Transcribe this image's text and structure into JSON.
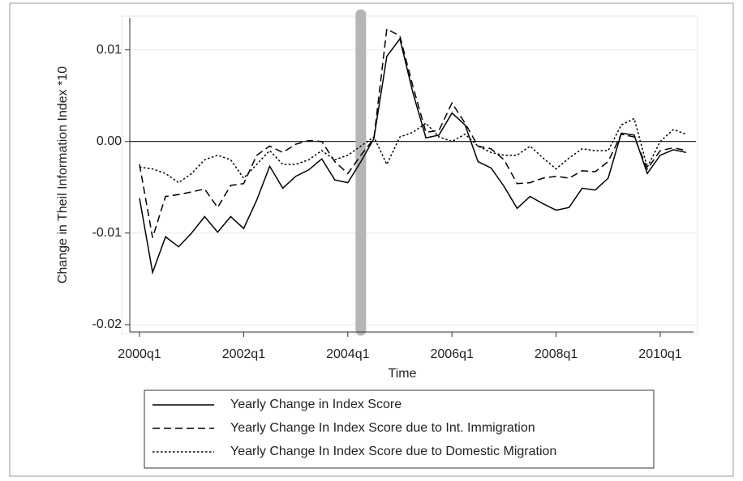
{
  "chart_data": {
    "type": "line",
    "ylabel": "Change in Theil Information Index *10",
    "xlabel": "Time",
    "x": [
      "2000q1",
      "2000q2",
      "2000q3",
      "2000q4",
      "2001q1",
      "2001q2",
      "2001q3",
      "2001q4",
      "2002q1",
      "2002q2",
      "2002q3",
      "2002q4",
      "2003q1",
      "2003q2",
      "2003q3",
      "2003q4",
      "2004q1",
      "2004q2",
      "2004q3",
      "2004q4",
      "2005q1",
      "2005q2",
      "2005q3",
      "2005q4",
      "2006q1",
      "2006q2",
      "2006q3",
      "2006q4",
      "2007q1",
      "2007q2",
      "2007q3",
      "2007q4",
      "2008q1",
      "2008q2",
      "2008q3",
      "2008q4",
      "2009q1",
      "2009q2",
      "2009q3",
      "2009q4",
      "2010q1",
      "2010q2",
      "2010q3"
    ],
    "xticks": [
      "2000q1",
      "2002q1",
      "2004q1",
      "2006q1",
      "2008q1",
      "2010q1"
    ],
    "highlight_x": "2004q2",
    "ylim": [
      -0.0208,
      0.0135
    ],
    "yticks": [
      -0.02,
      -0.01,
      {
        "value": 0,
        "label": "0.00"
      },
      0.01
    ],
    "grid": true,
    "series": [
      {
        "name": "Yearly Change in Index Score",
        "color": "#000000",
        "dash": "solid",
        "values": [
          -0.0062,
          -0.0143,
          -0.0104,
          -0.0115,
          -0.01,
          -0.0082,
          -0.0099,
          -0.0082,
          -0.0095,
          -0.0064,
          -0.0027,
          -0.0051,
          -0.0038,
          -0.0031,
          -0.0019,
          -0.0042,
          -0.0045,
          -0.0022,
          0.0003,
          0.0093,
          0.0112,
          0.0053,
          0.0004,
          0.0007,
          0.0031,
          0.0018,
          -0.0022,
          -0.0029,
          -0.0049,
          -0.0073,
          -0.006,
          -0.0068,
          -0.0075,
          -0.0072,
          -0.0051,
          -0.0053,
          -0.004,
          0.0009,
          0.0007,
          -0.0035,
          -0.0015,
          -0.0009,
          -0.0012
        ]
      },
      {
        "name": "Yearly Change In Index Score due to Int. Immigration",
        "color": "#000000",
        "dash": "dashed",
        "values": [
          -0.0025,
          -0.0105,
          -0.006,
          -0.0058,
          -0.0055,
          -0.0052,
          -0.0072,
          -0.0048,
          -0.0046,
          -0.0015,
          -0.0005,
          -0.0012,
          -0.0003,
          0.0001,
          0.0,
          -0.0022,
          -0.0035,
          -0.0015,
          0.0003,
          0.0123,
          0.0115,
          0.006,
          0.001,
          0.0012,
          0.0042,
          0.002,
          -0.0005,
          -0.0008,
          -0.002,
          -0.0046,
          -0.0045,
          -0.004,
          -0.0038,
          -0.004,
          -0.0032,
          -0.0033,
          -0.0022,
          0.0008,
          0.0005,
          -0.003,
          -0.001,
          -0.0007,
          -0.001
        ]
      },
      {
        "name": "Yearly Change In Index Score due to Domestic Migration",
        "color": "#000000",
        "dash": "dotted",
        "values": [
          -0.0028,
          -0.003,
          -0.0035,
          -0.0045,
          -0.0035,
          -0.002,
          -0.0015,
          -0.002,
          -0.004,
          -0.0025,
          -0.001,
          -0.0025,
          -0.0025,
          -0.002,
          -0.001,
          -0.002,
          -0.0015,
          -0.0005,
          0.0005,
          -0.0025,
          0.0005,
          0.001,
          0.002,
          0.0005,
          0.0,
          0.0008,
          -0.0005,
          -0.0012,
          -0.0015,
          -0.0015,
          -0.0005,
          -0.0018,
          -0.003,
          -0.0018,
          -0.0008,
          -0.001,
          -0.001,
          0.0018,
          0.0025,
          -0.0028,
          0.0,
          0.0013,
          0.0008
        ]
      }
    ]
  }
}
